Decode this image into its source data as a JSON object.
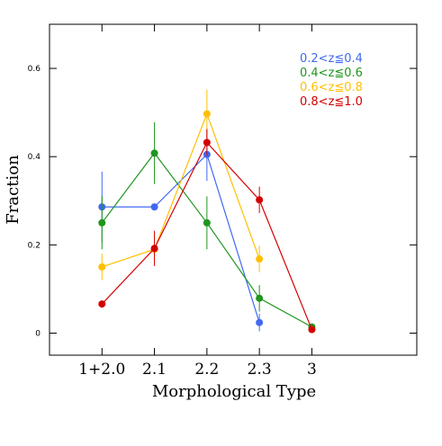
{
  "chart_data": {
    "type": "line",
    "xlabel": "Morphological Type",
    "ylabel": "Fraction",
    "categories": [
      "1+2.0",
      "2.1",
      "2.2",
      "2.3",
      "3"
    ],
    "ylim": [
      -0.05,
      0.7
    ],
    "yticks": [
      0,
      0.2,
      0.4,
      0.6
    ],
    "legend": "upper right",
    "series": [
      {
        "name": "0.2<z≦0.4",
        "color": "#4169f0",
        "values": [
          0.286,
          0.286,
          0.405,
          0.024,
          null
        ],
        "errors": [
          0.08,
          null,
          0.06,
          0.02,
          null
        ]
      },
      {
        "name": "0.4<z≦0.6",
        "color": "#1e961e",
        "values": [
          0.25,
          0.408,
          0.25,
          0.079,
          0.014
        ],
        "errors": [
          0.06,
          0.07,
          0.06,
          0.03,
          null
        ]
      },
      {
        "name": "0.6<z≦0.8",
        "color": "#ffbf00",
        "values": [
          0.15,
          0.19,
          0.497,
          0.168,
          null
        ],
        "errors": [
          0.03,
          0.03,
          0.055,
          0.03,
          null
        ]
      },
      {
        "name": "0.8<z≦1.0",
        "color": "#d40000",
        "values": [
          0.066,
          0.192,
          0.432,
          0.302,
          0.008
        ],
        "errors": [
          null,
          0.04,
          0.03,
          0.03,
          null
        ]
      }
    ]
  }
}
